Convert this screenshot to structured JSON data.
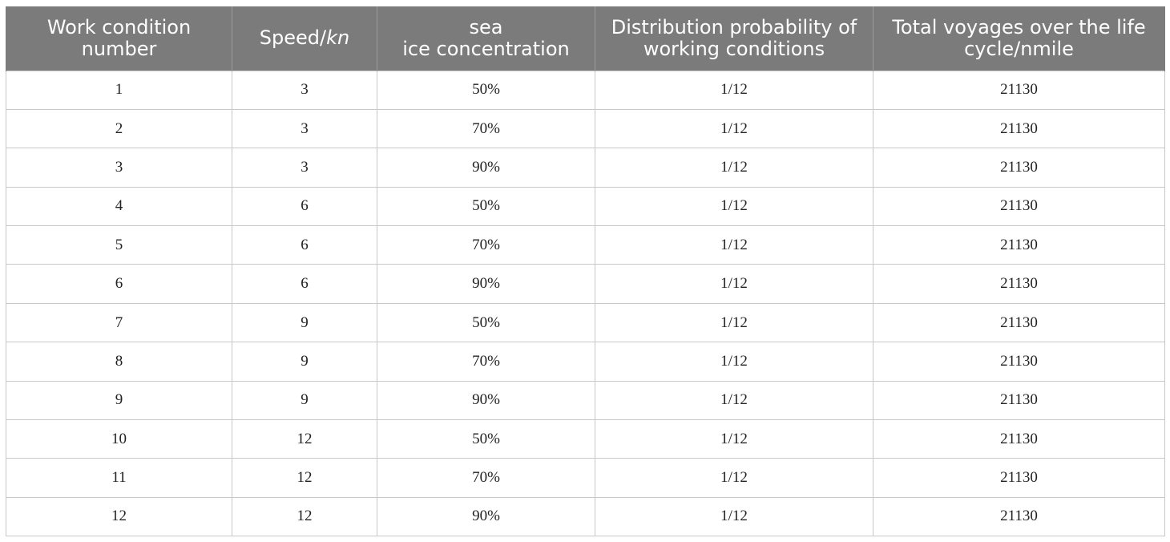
{
  "table": {
    "headers": [
      {
        "text": "Work condition number"
      },
      {
        "text": "Speed/",
        "italic_suffix": "kn"
      },
      {
        "line1": "sea",
        "line2": "ice concentration"
      },
      {
        "text": "Distribution probability of working conditions"
      },
      {
        "text": "Total voyages over the life cycle/nmile"
      }
    ],
    "rows": [
      [
        "1",
        "3",
        "50%",
        "1/12",
        "21130"
      ],
      [
        "2",
        "3",
        "70%",
        "1/12",
        "21130"
      ],
      [
        "3",
        "3",
        "90%",
        "1/12",
        "21130"
      ],
      [
        "4",
        "6",
        "50%",
        "1/12",
        "21130"
      ],
      [
        "5",
        "6",
        "70%",
        "1/12",
        "21130"
      ],
      [
        "6",
        "6",
        "90%",
        "1/12",
        "21130"
      ],
      [
        "7",
        "9",
        "50%",
        "1/12",
        "21130"
      ],
      [
        "8",
        "9",
        "70%",
        "1/12",
        "21130"
      ],
      [
        "9",
        "9",
        "90%",
        "1/12",
        "21130"
      ],
      [
        "10",
        "12",
        "50%",
        "1/12",
        "21130"
      ],
      [
        "11",
        "12",
        "70%",
        "1/12",
        "21130"
      ],
      [
        "12",
        "12",
        "90%",
        "1/12",
        "21130"
      ]
    ]
  },
  "colors": {
    "header_background": "#7b7b7b",
    "header_text": "#ffffff",
    "grid_line": "#c8c8c8",
    "body_text": "#222222"
  }
}
